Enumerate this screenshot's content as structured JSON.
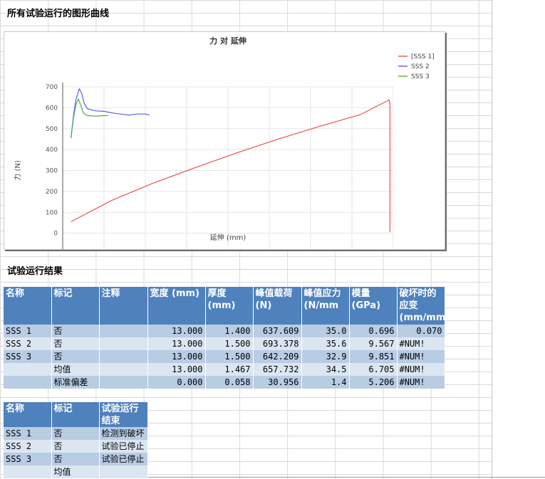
{
  "sheet": {
    "title": "所有试验运行的图形曲线",
    "results_title": "试验运行结果"
  },
  "chart_data": {
    "type": "line",
    "title": "力 对 延伸",
    "xlabel": "延伸 (mm)",
    "ylabel": "力 (N)",
    "xlim": [
      -0.1,
      3.9
    ],
    "ylim": [
      -100,
      700
    ],
    "xticks": [
      "-0.1",
      "0.4",
      "0.9",
      "1.4",
      "1.9",
      "2.4",
      "2.9",
      "3.4",
      "3.9"
    ],
    "yticks": [
      "700",
      "600",
      "500",
      "400",
      "300",
      "200",
      "100",
      "0",
      "-100"
    ],
    "grid": true,
    "legend_position": "right",
    "series": [
      {
        "name": "[SSS 1]",
        "color": "#e8534f",
        "x": [
          0.0,
          0.5,
          1.0,
          1.5,
          2.0,
          2.5,
          3.0,
          3.5,
          3.85,
          3.86,
          3.86
        ],
        "y": [
          55,
          158,
          240,
          313,
          383,
          449,
          510,
          567,
          637,
          620,
          5
        ]
      },
      {
        "name": "SSS 2",
        "color": "#5a5af0",
        "x": [
          0.0,
          0.03,
          0.06,
          0.1,
          0.13,
          0.16,
          0.2,
          0.3,
          0.4,
          0.5,
          0.6,
          0.7,
          0.8,
          0.9,
          0.95
        ],
        "y": [
          455,
          560,
          640,
          690,
          670,
          620,
          595,
          585,
          583,
          575,
          570,
          565,
          570,
          570,
          565
        ]
      },
      {
        "name": "SSS 3",
        "color": "#4caf50",
        "x": [
          0.0,
          0.03,
          0.06,
          0.09,
          0.12,
          0.15,
          0.2,
          0.3,
          0.4,
          0.45
        ],
        "y": [
          455,
          550,
          615,
          642,
          610,
          575,
          562,
          560,
          562,
          562
        ]
      }
    ]
  },
  "table1": {
    "headers": [
      "名称",
      "标记",
      "注释",
      "宽度 (mm)",
      "厚度 (mm)",
      "峰值载荷 (N)",
      "峰值应力 (N/mm",
      "模量 (GPa)",
      "破坏时的应变 (mm/mm"
    ],
    "rows": [
      [
        "SSS 1",
        "否",
        "",
        "13.000",
        "1.400",
        "637.609",
        "35.0",
        "0.696",
        "0.070"
      ],
      [
        "SSS 2",
        "否",
        "",
        "13.000",
        "1.500",
        "693.378",
        "35.6",
        "9.567",
        "#NUM!"
      ],
      [
        "SSS 3",
        "否",
        "",
        "13.000",
        "1.500",
        "642.209",
        "32.9",
        "9.851",
        "#NUM!"
      ],
      [
        "",
        "均值",
        "",
        "13.000",
        "1.467",
        "657.732",
        "34.5",
        "6.705",
        "#NUM!"
      ],
      [
        "",
        "标准偏差",
        "",
        "0.000",
        "0.058",
        "30.956",
        "1.4",
        "5.206",
        "#NUM!"
      ]
    ]
  },
  "table2": {
    "headers": [
      "名称",
      "标记",
      "试验运行结束"
    ],
    "rows": [
      [
        "SSS 1",
        "否",
        "检测到破坏"
      ],
      [
        "SSS 2",
        "否",
        "试验已停止"
      ],
      [
        "SSS 3",
        "否",
        "试验已停止"
      ],
      [
        "",
        "均值",
        ""
      ]
    ]
  }
}
